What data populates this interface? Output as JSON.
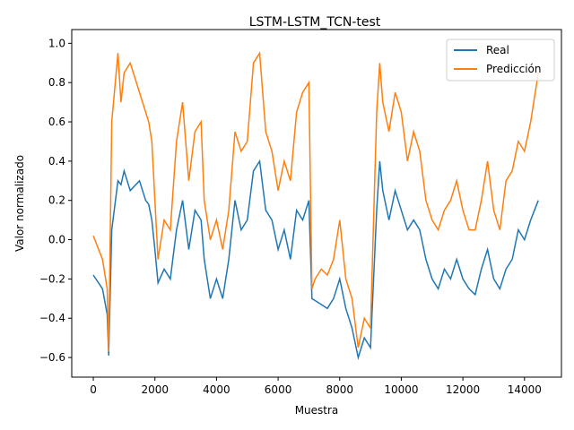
{
  "chart_data": {
    "type": "line",
    "title": "LSTM-LSTM_TCN-test",
    "xlabel": "Muestra",
    "ylabel": "Valor normalizado",
    "xlim": [
      -700,
      15200
    ],
    "ylim": [
      -0.7,
      1.07
    ],
    "xticks": [
      0,
      2000,
      4000,
      6000,
      8000,
      10000,
      12000,
      14000
    ],
    "yticks": [
      -0.6,
      -0.4,
      -0.2,
      0.0,
      0.2,
      0.4,
      0.6,
      0.8,
      1.0
    ],
    "xtick_labels": [
      "0",
      "2000",
      "4000",
      "6000",
      "8000",
      "10000",
      "12000",
      "14000"
    ],
    "ytick_labels": [
      "−0.6",
      "−0.4",
      "−0.2",
      "0.0",
      "0.2",
      "0.4",
      "0.6",
      "0.8",
      "1.0"
    ],
    "grid": false,
    "legend_position": "top-right",
    "series": [
      {
        "name": "Real",
        "color": "#1f77b4",
        "x": [
          0,
          300,
          450,
          500,
          600,
          800,
          900,
          1000,
          1200,
          1500,
          1700,
          1800,
          1900,
          2000,
          2100,
          2300,
          2500,
          2700,
          2900,
          3100,
          3300,
          3500,
          3600,
          3800,
          4000,
          4200,
          4400,
          4600,
          4800,
          5000,
          5200,
          5400,
          5600,
          5800,
          6000,
          6200,
          6400,
          6600,
          6800,
          7000,
          7100,
          7200,
          7400,
          7600,
          7800,
          8000,
          8200,
          8400,
          8600,
          8800,
          9000,
          9200,
          9300,
          9400,
          9600,
          9800,
          10000,
          10200,
          10400,
          10600,
          10800,
          11000,
          11200,
          11400,
          11600,
          11800,
          12000,
          12200,
          12400,
          12600,
          12800,
          13000,
          13200,
          13400,
          13600,
          13800,
          14000,
          14200,
          14450
        ],
        "y": [
          -0.18,
          -0.25,
          -0.38,
          -0.59,
          0.05,
          0.3,
          0.28,
          0.35,
          0.25,
          0.3,
          0.2,
          0.18,
          0.1,
          -0.05,
          -0.22,
          -0.15,
          -0.2,
          0.05,
          0.2,
          -0.05,
          0.15,
          0.1,
          -0.1,
          -0.3,
          -0.2,
          -0.3,
          -0.1,
          0.2,
          0.05,
          0.1,
          0.35,
          0.4,
          0.15,
          0.1,
          -0.05,
          0.05,
          -0.1,
          0.15,
          0.1,
          0.2,
          -0.3,
          -0.31,
          -0.33,
          -0.35,
          -0.3,
          -0.2,
          -0.35,
          -0.45,
          -0.6,
          -0.5,
          -0.55,
          0.15,
          0.4,
          0.25,
          0.1,
          0.25,
          0.15,
          0.05,
          0.1,
          0.05,
          -0.1,
          -0.2,
          -0.25,
          -0.15,
          -0.2,
          -0.1,
          -0.2,
          -0.25,
          -0.28,
          -0.15,
          -0.05,
          -0.2,
          -0.25,
          -0.15,
          -0.1,
          0.05,
          0.0,
          0.1,
          0.2
        ]
      },
      {
        "name": "Predicción",
        "color": "#ff7f0e",
        "x": [
          0,
          300,
          450,
          500,
          600,
          800,
          900,
          1000,
          1200,
          1500,
          1700,
          1800,
          1900,
          2000,
          2100,
          2300,
          2500,
          2700,
          2900,
          3100,
          3300,
          3500,
          3600,
          3800,
          4000,
          4200,
          4400,
          4600,
          4800,
          5000,
          5200,
          5400,
          5600,
          5800,
          6000,
          6200,
          6400,
          6600,
          6800,
          7000,
          7100,
          7200,
          7400,
          7600,
          7800,
          8000,
          8200,
          8400,
          8600,
          8800,
          9000,
          9200,
          9300,
          9400,
          9600,
          9800,
          10000,
          10200,
          10400,
          10600,
          10800,
          11000,
          11200,
          11400,
          11600,
          11800,
          12000,
          12200,
          12400,
          12600,
          12800,
          13000,
          13200,
          13400,
          13600,
          13800,
          14000,
          14200,
          14450
        ],
        "y": [
          0.02,
          -0.1,
          -0.25,
          -0.57,
          0.6,
          0.95,
          0.7,
          0.85,
          0.9,
          0.75,
          0.65,
          0.6,
          0.5,
          0.2,
          -0.1,
          0.1,
          0.05,
          0.5,
          0.7,
          0.3,
          0.55,
          0.6,
          0.2,
          0.0,
          0.1,
          -0.05,
          0.15,
          0.55,
          0.45,
          0.5,
          0.9,
          0.95,
          0.55,
          0.45,
          0.25,
          0.4,
          0.3,
          0.65,
          0.75,
          0.8,
          -0.25,
          -0.2,
          -0.15,
          -0.18,
          -0.1,
          0.1,
          -0.2,
          -0.3,
          -0.55,
          -0.4,
          -0.45,
          0.65,
          0.9,
          0.7,
          0.55,
          0.75,
          0.65,
          0.4,
          0.55,
          0.45,
          0.2,
          0.1,
          0.05,
          0.15,
          0.2,
          0.3,
          0.15,
          0.05,
          0.05,
          0.2,
          0.4,
          0.15,
          0.05,
          0.3,
          0.35,
          0.5,
          0.45,
          0.6,
          0.85
        ]
      }
    ]
  }
}
